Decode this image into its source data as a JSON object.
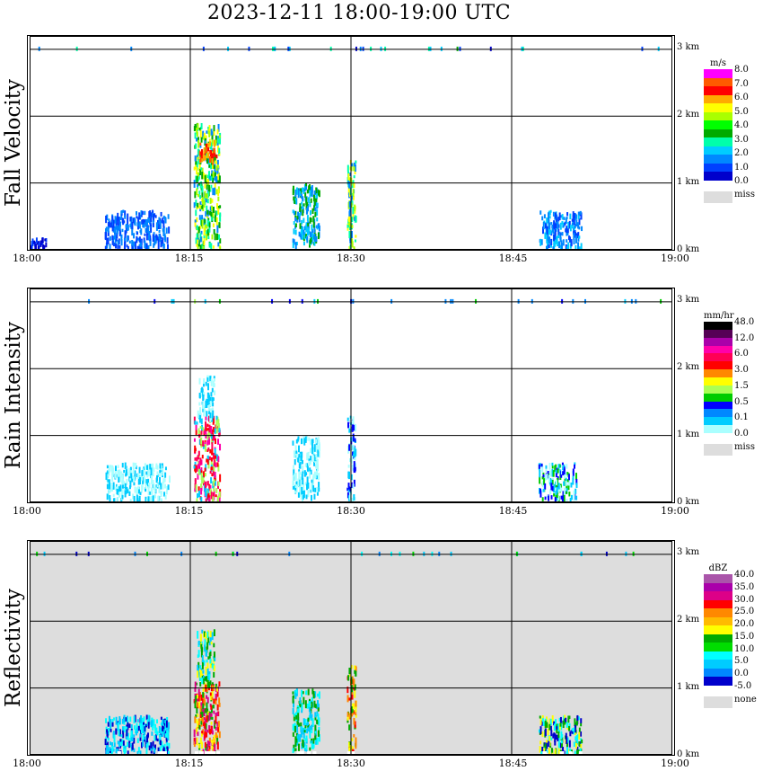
{
  "title": "2023-12-11   18:00-19:00 UTC",
  "chart_data": [
    {
      "type": "heatmap",
      "title": "Fall Velocity",
      "x_ticks": [
        "18:00",
        "18:15",
        "18:30",
        "18:45",
        "19:00"
      ],
      "y_ticks": [
        "0 km",
        "1 km",
        "2 km",
        "3 km"
      ],
      "xlim": [
        0,
        60
      ],
      "ylim": [
        0,
        3.2
      ],
      "grid": true,
      "background": "#ffffff",
      "colorbar": {
        "unit": "m/s",
        "labels": [
          "8.0",
          "7.0",
          "6.0",
          "5.0",
          "4.0",
          "3.0",
          "2.0",
          "1.0",
          "0.0"
        ],
        "colors": [
          "#ff00ff",
          "#ff5a00",
          "#ff0000",
          "#ffaa00",
          "#ffff00",
          "#aaff00",
          "#00ff00",
          "#00aa00",
          "#00ffaa",
          "#00ccff",
          "#0088ff",
          "#0040ff",
          "#0000cc"
        ],
        "missing_label": "miss",
        "missing_color": "#dddddd"
      },
      "regions": [
        {
          "t": [
            15.3,
            17.7
          ],
          "h": [
            0.05,
            1.9
          ],
          "colors": [
            "#00aa00",
            "#aaff00",
            "#ffff00",
            "#00ffaa",
            "#0088ff"
          ]
        },
        {
          "t": [
            15.8,
            17.4
          ],
          "h": [
            1.35,
            1.65
          ],
          "colors": [
            "#ff0000",
            "#ff5a00",
            "#ffaa00"
          ]
        },
        {
          "t": [
            29.6,
            30.4
          ],
          "h": [
            0.05,
            1.35
          ],
          "colors": [
            "#ffff00",
            "#aaff00",
            "#00ffaa",
            "#0088ff"
          ]
        },
        {
          "t": [
            24.5,
            27.0
          ],
          "h": [
            0.1,
            1.0
          ],
          "colors": [
            "#00ccff",
            "#00aa00",
            "#0088ff"
          ]
        },
        {
          "t": [
            47.5,
            51.5
          ],
          "h": [
            0.05,
            0.6
          ],
          "colors": [
            "#0040ff",
            "#0088ff",
            "#00ccff"
          ]
        },
        {
          "t": [
            0.0,
            1.5
          ],
          "h": [
            0.05,
            0.2
          ],
          "colors": [
            "#0040ff",
            "#0000cc"
          ]
        },
        {
          "t": [
            7.0,
            13.0
          ],
          "h": [
            0.05,
            0.6
          ],
          "colors": [
            "#0040ff",
            "#0088ff"
          ]
        }
      ]
    },
    {
      "type": "heatmap",
      "title": "Rain Intensity",
      "x_ticks": [
        "18:00",
        "18:15",
        "18:30",
        "18:45",
        "19:00"
      ],
      "y_ticks": [
        "0 km",
        "1 km",
        "2 km",
        "3 km"
      ],
      "xlim": [
        0,
        60
      ],
      "ylim": [
        0,
        3.2
      ],
      "grid": true,
      "background": "#ffffff",
      "colorbar": {
        "unit": "mm/hr",
        "labels": [
          "48.0",
          "12.0",
          "6.0",
          "3.0",
          "1.5",
          "0.5",
          "0.1",
          "0.0"
        ],
        "colors": [
          "#000000",
          "#550055",
          "#aa00aa",
          "#ff00aa",
          "#ff0055",
          "#ff0000",
          "#ff8800",
          "#ffff00",
          "#aaff55",
          "#00cc00",
          "#0000ff",
          "#0088ff",
          "#00ccff",
          "#aaffff"
        ],
        "missing_label": "miss",
        "missing_color": "#dddddd"
      },
      "regions": [
        {
          "t": [
            15.3,
            17.7
          ],
          "h": [
            0.05,
            1.3
          ],
          "colors": [
            "#ff0055",
            "#ff00aa",
            "#ff0000",
            "#aaff55",
            "#00ccff"
          ]
        },
        {
          "t": [
            15.6,
            17.2
          ],
          "h": [
            1.3,
            1.9
          ],
          "colors": [
            "#aaffff",
            "#00ccff"
          ]
        },
        {
          "t": [
            29.6,
            30.4
          ],
          "h": [
            0.05,
            1.3
          ],
          "colors": [
            "#0000ff",
            "#00ccff",
            "#aaffff"
          ]
        },
        {
          "t": [
            24.5,
            27.0
          ],
          "h": [
            0.1,
            1.0
          ],
          "colors": [
            "#aaffff",
            "#00ccff"
          ]
        },
        {
          "t": [
            47.5,
            51.0
          ],
          "h": [
            0.05,
            0.6
          ],
          "colors": [
            "#00ccff",
            "#aaffff",
            "#0000ff",
            "#00cc00"
          ]
        },
        {
          "t": [
            7.0,
            13.0
          ],
          "h": [
            0.05,
            0.6
          ],
          "colors": [
            "#aaffff",
            "#00ccff"
          ]
        }
      ]
    },
    {
      "type": "heatmap",
      "title": "Reflectivity",
      "x_ticks": [
        "18:00",
        "18:15",
        "18:30",
        "18:45",
        "19:00"
      ],
      "y_ticks": [
        "0 km",
        "1 km",
        "2 km",
        "3 km"
      ],
      "xlim": [
        0,
        60
      ],
      "ylim": [
        0,
        3.2
      ],
      "grid": true,
      "background": "#dddddd",
      "colorbar": {
        "unit": "dBZ",
        "labels": [
          "40.0",
          "35.0",
          "30.0",
          "25.0",
          "20.0",
          "15.0",
          "10.0",
          "5.0",
          "0.0",
          "-5.0"
        ],
        "colors": [
          "#aa55aa",
          "#aa00aa",
          "#dd0088",
          "#ff0000",
          "#ff8800",
          "#ffbb00",
          "#ffff00",
          "#00aa00",
          "#00dd00",
          "#00ffff",
          "#00ccff",
          "#0088ff",
          "#0000cc"
        ],
        "missing_label": "none",
        "missing_color": "#dddddd"
      },
      "regions": [
        {
          "t": [
            15.3,
            17.7
          ],
          "h": [
            0.05,
            1.1
          ],
          "colors": [
            "#ff0000",
            "#dd0088",
            "#ff8800",
            "#ffff00",
            "#00aa00"
          ]
        },
        {
          "t": [
            15.6,
            17.2
          ],
          "h": [
            1.1,
            1.9
          ],
          "colors": [
            "#00ffff",
            "#00aa00",
            "#ffff00",
            "#00ccff"
          ]
        },
        {
          "t": [
            29.6,
            30.4
          ],
          "h": [
            0.05,
            1.35
          ],
          "colors": [
            "#ff0000",
            "#ff8800",
            "#ffff00",
            "#00aa00"
          ]
        },
        {
          "t": [
            24.5,
            27.0
          ],
          "h": [
            0.1,
            1.0
          ],
          "colors": [
            "#00ffff",
            "#00aa00",
            "#00ccff"
          ]
        },
        {
          "t": [
            47.5,
            51.5
          ],
          "h": [
            0.05,
            0.6
          ],
          "colors": [
            "#ffff00",
            "#00aa00",
            "#00ffff",
            "#0000cc"
          ]
        },
        {
          "t": [
            7.0,
            13.0
          ],
          "h": [
            0.05,
            0.6
          ],
          "colors": [
            "#00ffff",
            "#00ccff",
            "#0000cc"
          ]
        }
      ]
    }
  ]
}
